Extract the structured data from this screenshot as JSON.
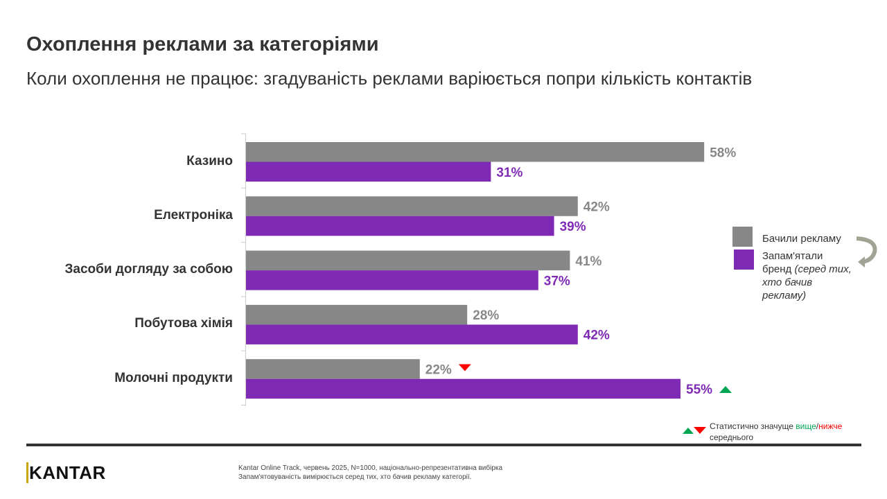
{
  "title": "Охоплення реклами за категоріями",
  "subtitle": "Коли охоплення не працює: згадуваність реклами варіюється попри кількість контактів",
  "chart_data": {
    "type": "bar",
    "orientation": "horizontal",
    "categories": [
      "Казино",
      "Електроніка",
      "Засоби догляду за собою",
      "Побутова хімія",
      "Молочні продукти"
    ],
    "series": [
      {
        "name": "Бачили рекламу",
        "color": "#878787",
        "values": [
          58,
          42,
          41,
          28,
          22
        ],
        "labels": [
          "58%",
          "42%",
          "41%",
          "28%",
          "22%"
        ],
        "significance": [
          null,
          null,
          null,
          null,
          "lower"
        ]
      },
      {
        "name": "Запам'ятали бренд (серед тих, хто бачив рекламу)",
        "color": "#7e2ab5",
        "values": [
          31,
          39,
          37,
          42,
          55
        ],
        "labels": [
          "31%",
          "39%",
          "37%",
          "42%",
          "55%"
        ],
        "significance": [
          null,
          null,
          null,
          null,
          "higher"
        ]
      }
    ],
    "xlim": [
      0,
      100
    ],
    "grid": false,
    "legend_position": "right"
  },
  "legend": {
    "seen": "Бачили рекламу",
    "recalled_main": "Запам'ятали",
    "recalled_line2": "бренд ",
    "recalled_italic1": "(серед тих,",
    "recalled_italic2": "хто бачив",
    "recalled_italic3": "рекламу)"
  },
  "significance_note": {
    "prefix": "Статистично значуще ",
    "higher": "вище",
    "sep": "/",
    "lower": "нижче",
    "suffix": "середнього",
    "higher_color": "#00a651",
    "lower_color": "#ff0000"
  },
  "logo": "KANTAR",
  "footnote": {
    "line1": "Kantar Online Track, червень 2025, N=1000, національно-репрезентативна вибірка",
    "line2": "Запам'ятовуваність вимірюється серед тих, хто бачив рекламу категорії."
  }
}
